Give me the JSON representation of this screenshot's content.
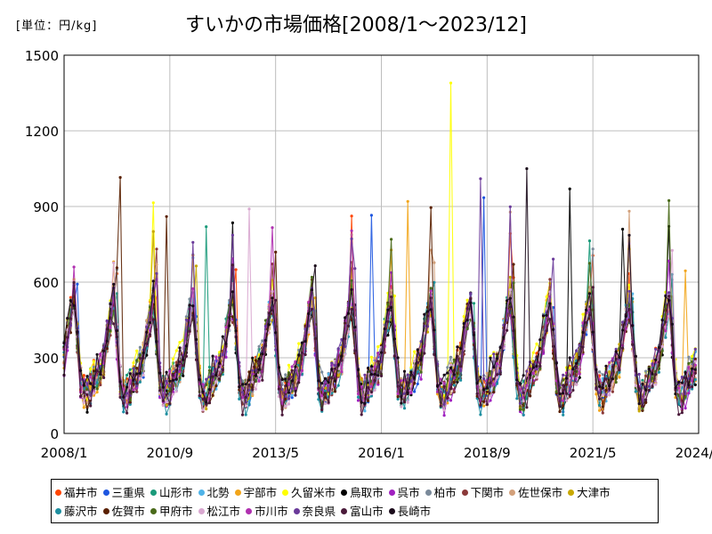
{
  "chart_data": {
    "type": "line",
    "title": "すいかの市場価格[2008/1～2023/12]",
    "unit_label": "[単位：円/kg]",
    "y_ticks": [
      0,
      300,
      600,
      900,
      1200,
      1500
    ],
    "x_ticks": [
      "2008/1",
      "2010/9",
      "2013/5",
      "2016/1",
      "2018/9",
      "2021/5",
      "2024/1"
    ],
    "ylim": [
      0,
      1500
    ],
    "xlim": [
      "2008/1",
      "2024/1"
    ],
    "grid": true,
    "legend_placement": "bottom",
    "series": [
      {
        "name": "福井市",
        "color": "#ff4500"
      },
      {
        "name": "三重県",
        "color": "#1e56e0"
      },
      {
        "name": "山形市",
        "color": "#1a9a7a"
      },
      {
        "name": "北勢",
        "color": "#4fb3e8"
      },
      {
        "name": "宇部市",
        "color": "#f2a51a"
      },
      {
        "name": "久留米市",
        "color": "#ffff00"
      },
      {
        "name": "鳥取市",
        "color": "#000000"
      },
      {
        "name": "呉市",
        "color": "#a020c0"
      },
      {
        "name": "柏市",
        "color": "#7a8a9a"
      },
      {
        "name": "下関市",
        "color": "#8b3a3a"
      },
      {
        "name": "佐世保市",
        "color": "#d2a07a"
      },
      {
        "name": "大津市",
        "color": "#c8a800"
      },
      {
        "name": "藤沢市",
        "color": "#1e8fa0"
      },
      {
        "name": "佐賀市",
        "color": "#5a2000"
      },
      {
        "name": "甲府市",
        "color": "#4a6a1a"
      },
      {
        "name": "松江市",
        "color": "#d9a8d0"
      },
      {
        "name": "市川市",
        "color": "#b030b0"
      },
      {
        "name": "奈良県",
        "color": "#6a3a9a"
      },
      {
        "name": "富山市",
        "color": "#4a1a3a"
      },
      {
        "name": "長崎市",
        "color": "#1a0a1a"
      }
    ],
    "notable_peaks": [
      {
        "series": "久留米市",
        "x": "2017/10",
        "y": 1390
      },
      {
        "series": "佐賀市",
        "x": "2009/6",
        "y": 1015
      },
      {
        "series": "長崎市",
        "x": "2019/9",
        "y": 1050
      },
      {
        "series": "奈良県",
        "x": "2018/7",
        "y": 1010
      },
      {
        "series": "鳥取市",
        "x": "2020/10",
        "y": 970
      },
      {
        "series": "久留米市",
        "x": "2010/4",
        "y": 915
      },
      {
        "series": "宇部市",
        "x": "2016/9",
        "y": 920
      },
      {
        "series": "三重県",
        "x": "2018/8",
        "y": 935
      },
      {
        "series": "松江市",
        "x": "2012/9",
        "y": 890
      },
      {
        "series": "三重県",
        "x": "2015/10",
        "y": 865
      },
      {
        "series": "鳥取市",
        "x": "2022/2",
        "y": 810
      },
      {
        "series": "山形市",
        "x": "2011/8",
        "y": 820
      },
      {
        "series": "佐賀市",
        "x": "2010/8",
        "y": 860
      },
      {
        "series": "久留米市",
        "x": "2022/8",
        "y": 690
      },
      {
        "series": "宇部市",
        "x": "2023/9",
        "y": 645
      }
    ]
  }
}
